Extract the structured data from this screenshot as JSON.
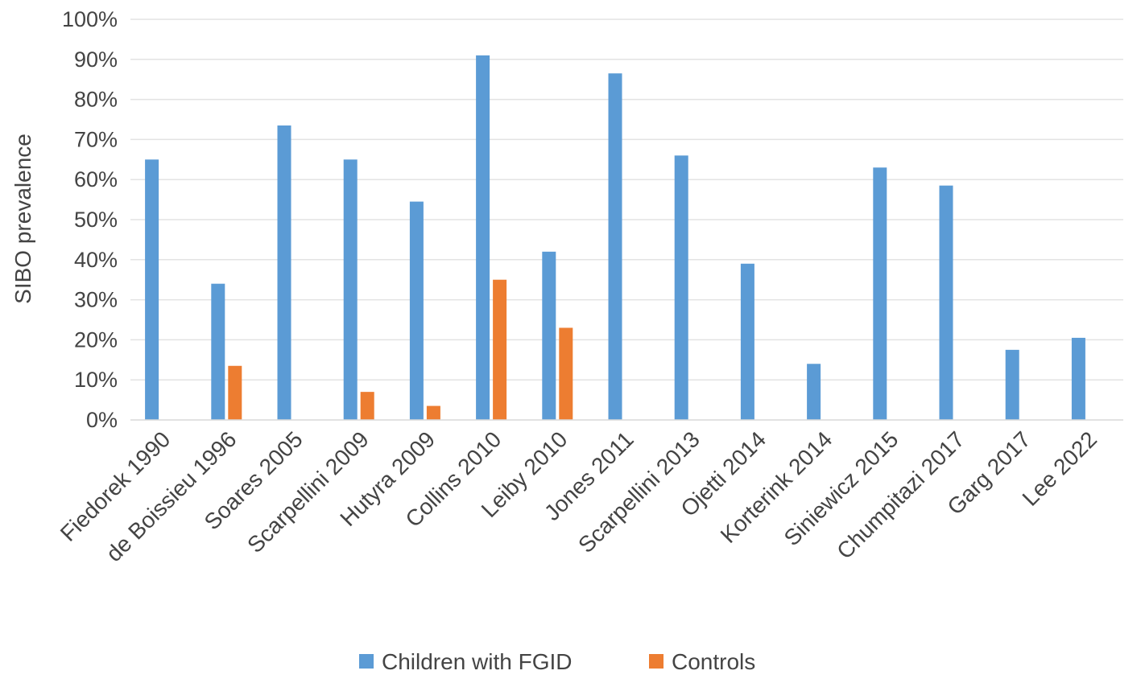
{
  "chart_data": {
    "type": "bar",
    "title": "",
    "xlabel": "",
    "ylabel": "SIBO prevalence",
    "ylim": [
      0,
      100
    ],
    "y_ticks": [
      "0%",
      "10%",
      "20%",
      "30%",
      "40%",
      "50%",
      "60%",
      "70%",
      "80%",
      "90%",
      "100%"
    ],
    "grid": true,
    "legend_position": "bottom",
    "categories": [
      "Fiedorek 1990",
      "de Boissieu 1996",
      "Soares 2005",
      "Scarpellini 2009",
      "Hutyra 2009",
      "Collins 2010",
      "Leiby 2010",
      "Jones 2011",
      "Scarpellini 2013",
      "Ojetti 2014",
      "Korterink 2014",
      "Siniewicz 2015",
      "Chumpitazi 2017",
      "Garg 2017",
      "Lee 2022"
    ],
    "series": [
      {
        "name": "Children with FGID",
        "color": "#5B9BD5",
        "values": [
          65,
          34,
          73.5,
          65,
          54.5,
          91,
          42,
          86.5,
          66,
          39,
          14,
          63,
          58.5,
          17.5,
          20.5
        ]
      },
      {
        "name": "Controls",
        "color": "#ED7D31",
        "values": [
          null,
          13.5,
          null,
          7,
          3.5,
          35,
          23,
          null,
          null,
          null,
          null,
          null,
          null,
          null,
          null
        ]
      }
    ]
  }
}
